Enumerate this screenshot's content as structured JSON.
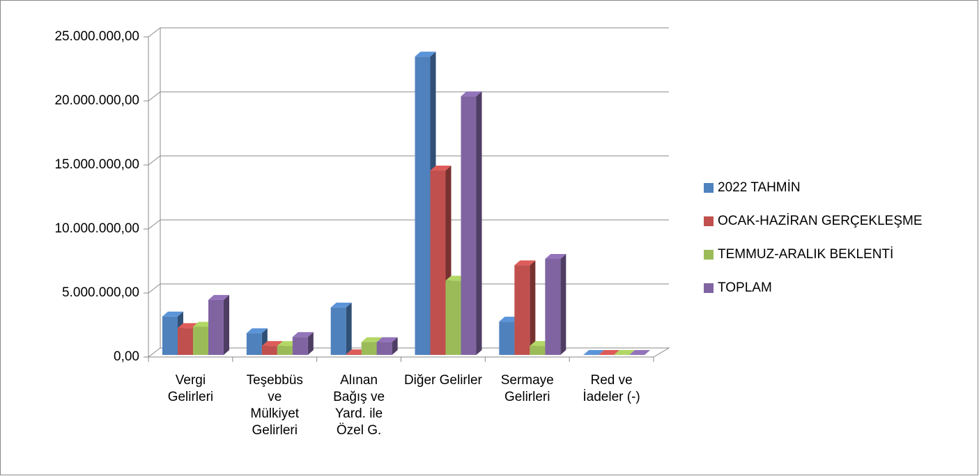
{
  "chart_data": {
    "type": "bar3d",
    "categories": [
      "Vergi\nGelirleri",
      "Teşebbüs\nve\nMülkiyet\nGelirleri",
      "Alınan\nBağış ve\nYard. ile\nÖzel G.",
      "Diğer Gelirler",
      "Sermaye\nGelirleri",
      "Red ve\nİadeler (-)"
    ],
    "series": [
      {
        "name": "2022 TAHMİN",
        "color": "#4f81bd",
        "values": [
          3000000,
          1700000,
          3700000,
          23300000,
          2600000,
          0
        ]
      },
      {
        "name": "OCAK-HAZİRAN GERÇEKLEŞME",
        "color": "#c0504d",
        "values": [
          2100000,
          700000,
          50000,
          14400000,
          7000000,
          0
        ]
      },
      {
        "name": "TEMMUZ-ARALIK BEKLENTİ",
        "color": "#9bbb59",
        "values": [
          2200000,
          700000,
          1000000,
          5800000,
          700000,
          0
        ]
      },
      {
        "name": "TOPLAM",
        "color": "#8064a2",
        "values": [
          4300000,
          1400000,
          1000000,
          20200000,
          7500000,
          0
        ]
      }
    ],
    "ylim": [
      0,
      25000000
    ],
    "yticks": [
      {
        "value": 0,
        "label": "0,00"
      },
      {
        "value": 5000000,
        "label": "5.000.000,00"
      },
      {
        "value": 10000000,
        "label": "10.000.000,00"
      },
      {
        "value": 15000000,
        "label": "15.000.000,00"
      },
      {
        "value": 20000000,
        "label": "20.000.000,00"
      },
      {
        "value": 25000000,
        "label": "25.000.000,00"
      }
    ],
    "grid": true,
    "legend": "right"
  }
}
